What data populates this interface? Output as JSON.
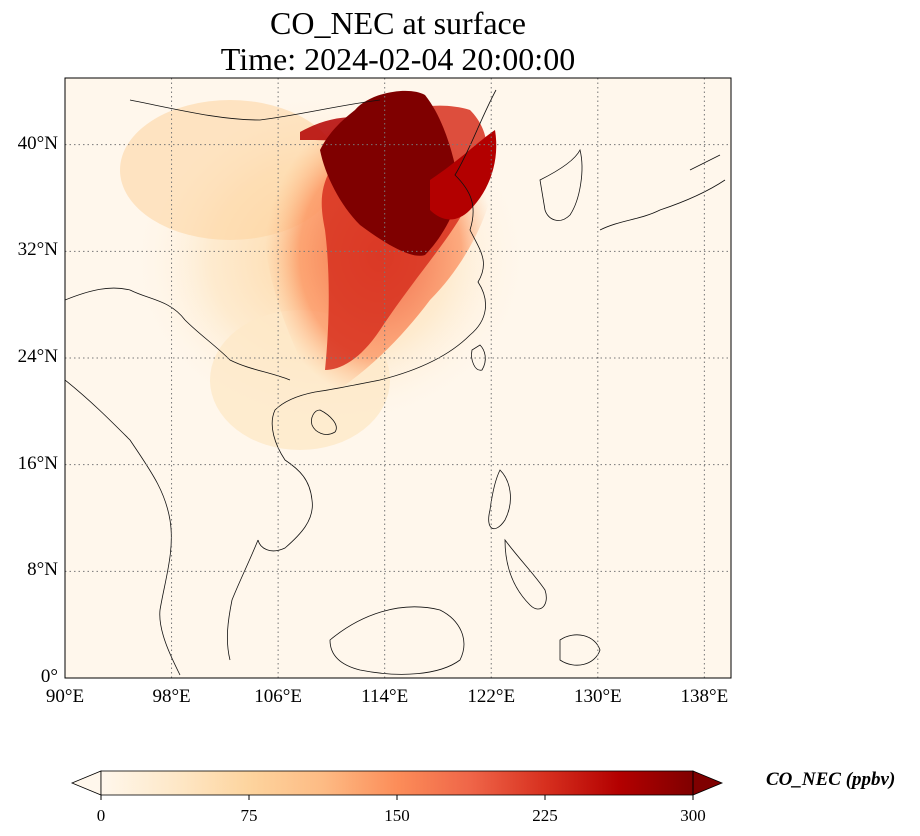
{
  "title": {
    "line1": "CO_NEC at surface",
    "line2": "Time: 2024-02-04 20:00:00"
  },
  "map": {
    "extent": {
      "lon": [
        90,
        140
      ],
      "lat": [
        0,
        45
      ]
    },
    "gridlines": "dotted",
    "lat_ticks": [
      {
        "value": 0,
        "label": "0°"
      },
      {
        "value": 8,
        "label": "8°N"
      },
      {
        "value": 16,
        "label": "16°N"
      },
      {
        "value": 24,
        "label": "24°N"
      },
      {
        "value": 32,
        "label": "32°N"
      },
      {
        "value": 40,
        "label": "40°N"
      }
    ],
    "lon_ticks": [
      {
        "value": 90,
        "label": "90°E"
      },
      {
        "value": 98,
        "label": "98°E"
      },
      {
        "value": 106,
        "label": "106°E"
      },
      {
        "value": 114,
        "label": "114°E"
      },
      {
        "value": 122,
        "label": "122°E"
      },
      {
        "value": 130,
        "label": "130°E"
      },
      {
        "value": 138,
        "label": "138°E"
      }
    ]
  },
  "colorbar": {
    "label": "CO_NEC (ppbv)",
    "range": [
      0,
      300
    ],
    "ticks": [
      {
        "value": 0,
        "label": "0"
      },
      {
        "value": 75,
        "label": "75"
      },
      {
        "value": 150,
        "label": "150"
      },
      {
        "value": 225,
        "label": "225"
      },
      {
        "value": 300,
        "label": "300"
      }
    ],
    "colormap": "OrRd",
    "colors": [
      "#fff7ec",
      "#fee8c8",
      "#fdd49e",
      "#fdbb84",
      "#fc8d59",
      "#ef6548",
      "#d7301f",
      "#b30000",
      "#7f0000"
    ],
    "extend": "both"
  }
}
